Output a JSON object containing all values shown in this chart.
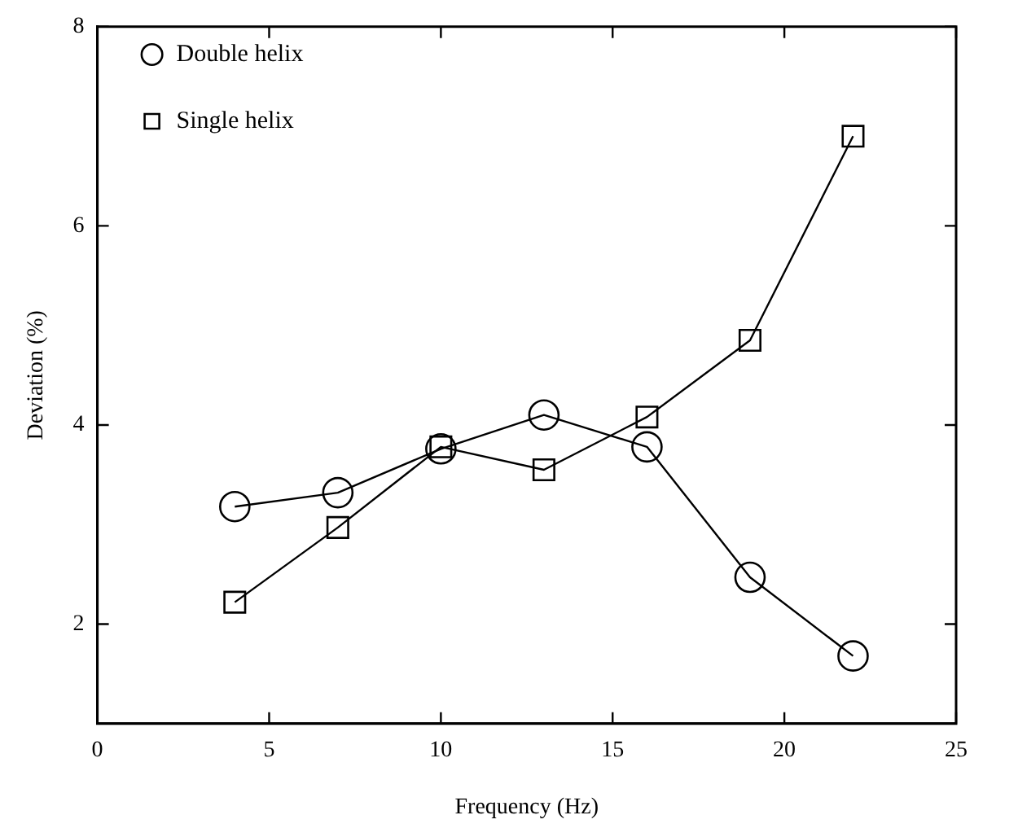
{
  "chart_data": {
    "type": "line",
    "xlabel": "Frequency (Hz)",
    "ylabel": "Deviation (%)",
    "x": [
      4,
      7,
      10,
      13,
      16,
      19,
      22
    ],
    "xlim": [
      0,
      25
    ],
    "xticks": [
      0,
      5,
      10,
      15,
      20,
      25
    ],
    "ylim": [
      1,
      8
    ],
    "yticks": [
      {
        "value": 1,
        "label": null
      },
      2,
      4,
      6,
      8
    ],
    "legend": "top left",
    "grid": false,
    "series": [
      {
        "name": "Double helix",
        "color": "#000000",
        "marker": "circle",
        "values": [
          3.18,
          3.32,
          3.76,
          4.1,
          3.78,
          2.47,
          1.68
        ]
      },
      {
        "name": "Single helix",
        "color": "#000000",
        "marker": "square",
        "values": [
          2.22,
          2.97,
          3.78,
          3.55,
          4.08,
          4.85,
          6.9
        ]
      }
    ]
  }
}
